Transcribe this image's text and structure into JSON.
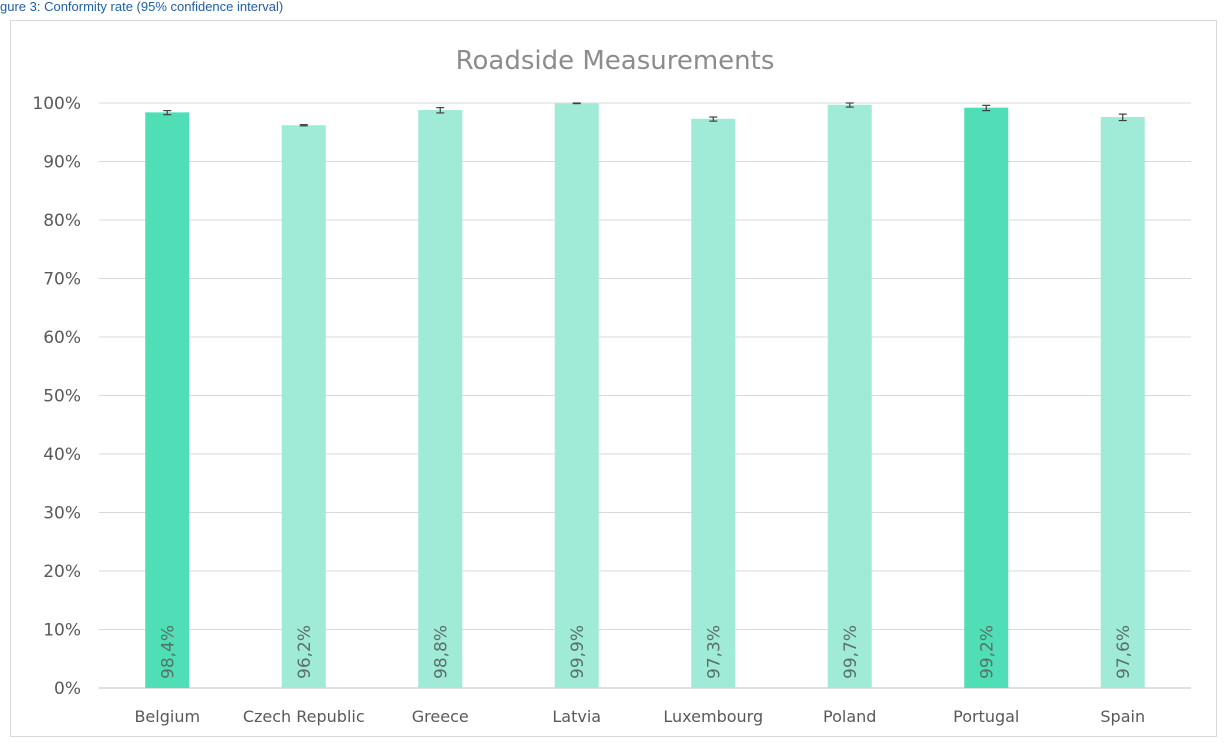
{
  "caption": "gure 3: Conformity rate (95% confidence interval)",
  "chart_data": {
    "type": "bar",
    "title": "Roadside Measurements",
    "xlabel": "",
    "ylabel": "",
    "ylim": [
      0,
      100
    ],
    "y_ticks": [
      "0%",
      "10%",
      "20%",
      "30%",
      "40%",
      "50%",
      "60%",
      "70%",
      "80%",
      "90%",
      "100%"
    ],
    "grid": true,
    "categories": [
      "Belgium",
      "Czech Republic",
      "Greece",
      "Latvia",
      "Luxembourg",
      "Poland",
      "Portugal",
      "Spain"
    ],
    "values": [
      98.4,
      96.2,
      98.8,
      99.9,
      97.3,
      99.7,
      99.2,
      97.6
    ],
    "data_labels": [
      "98,4%",
      "96,2%",
      "98,8%",
      "99,9%",
      "97,3%",
      "99,7%",
      "99,2%",
      "97,6%"
    ],
    "error_low": [
      98.0,
      96.1,
      98.3,
      99.9,
      96.9,
      99.3,
      98.7,
      97.0
    ],
    "error_high": [
      98.7,
      96.3,
      99.2,
      100.0,
      97.6,
      100.0,
      99.6,
      98.1
    ],
    "highlighted": [
      true,
      false,
      false,
      false,
      false,
      false,
      true,
      false
    ],
    "colors": {
      "highlight": "#50deb6",
      "normal": "#a0ebd7",
      "grid": "#d9d9d9",
      "axis": "#bfbfbf",
      "error_bar": "#404040"
    }
  }
}
